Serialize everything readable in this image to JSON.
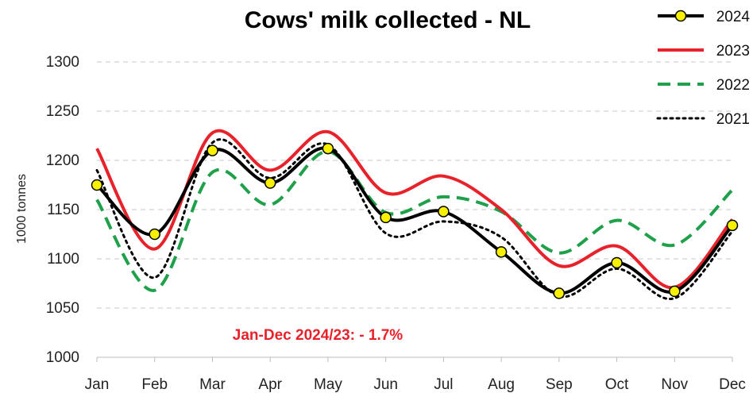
{
  "chart_data": {
    "type": "line",
    "title": "Cows' milk collected - NL",
    "ylabel": "1000 tonnes",
    "xlabel": "",
    "ylim": [
      1000,
      1300
    ],
    "yticks": [
      1000,
      1050,
      1100,
      1150,
      1200,
      1250,
      1300
    ],
    "grid": "horizontal-dashed",
    "legend_position": "top-right",
    "categories": [
      "Jan",
      "Feb",
      "Mar",
      "Apr",
      "May",
      "Jun",
      "Jul",
      "Aug",
      "Sep",
      "Oct",
      "Nov",
      "Dec"
    ],
    "annotation": {
      "text": "Jan-Dec 2024/23: - 1.7%",
      "color": "#e8222a"
    },
    "series": [
      {
        "name": "2024",
        "color": "#000000",
        "style": "solid-markers",
        "marker_color": "#f7f000",
        "values": [
          1175,
          1125,
          1210,
          1177,
          1212,
          1142,
          1148,
          1107,
          1065,
          1096,
          1067,
          1134
        ]
      },
      {
        "name": "2023",
        "color": "#e8222a",
        "style": "solid",
        "values": [
          1212,
          1110,
          1228,
          1190,
          1229,
          1167,
          1184,
          1150,
          1093,
          1113,
          1071,
          1140
        ]
      },
      {
        "name": "2022",
        "color": "#1fa04a",
        "style": "dashed",
        "values": [
          1160,
          1068,
          1188,
          1155,
          1209,
          1147,
          1163,
          1148,
          1106,
          1139,
          1114,
          1170
        ]
      },
      {
        "name": "2021",
        "color": "#000000",
        "style": "dotted",
        "values": [
          1190,
          1081,
          1218,
          1182,
          1216,
          1126,
          1138,
          1122,
          1062,
          1090,
          1060,
          1128
        ]
      }
    ]
  }
}
